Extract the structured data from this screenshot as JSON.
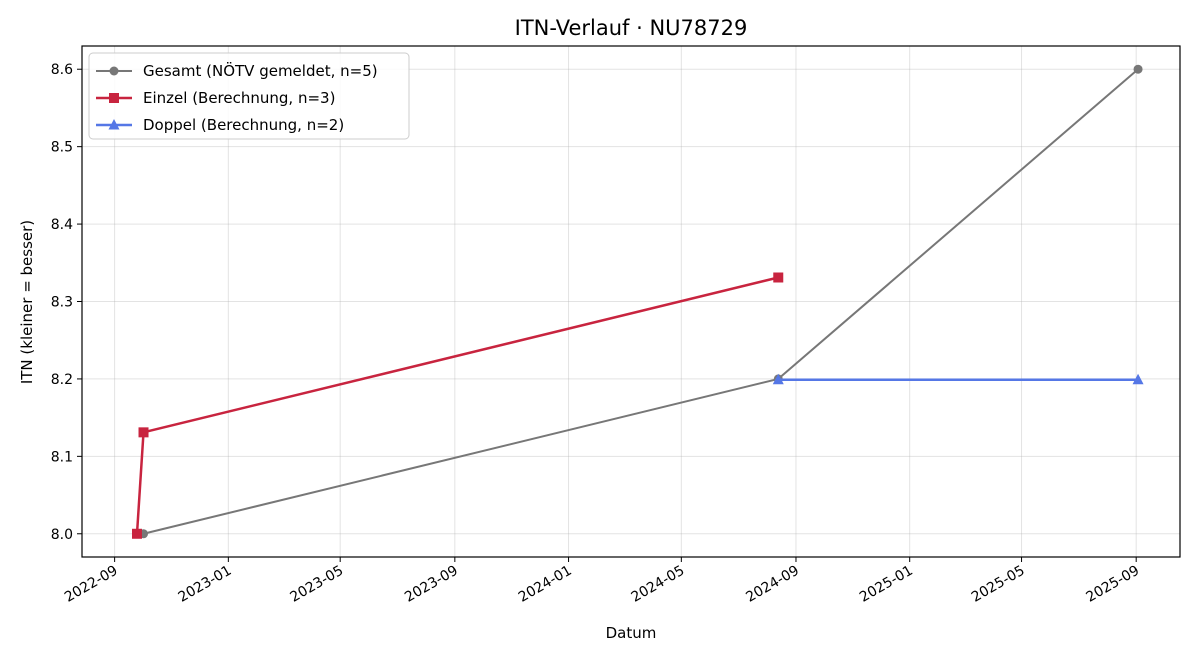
{
  "chart_data": {
    "type": "line",
    "title": "ITN-Verlauf · NU78729",
    "xlabel": "Datum",
    "ylabel": "ITN  (kleiner = besser)",
    "x_type": "date",
    "xlim": [
      "2022-07-28",
      "2025-10-18"
    ],
    "ylim": [
      7.97,
      8.63
    ],
    "x_ticks": [
      "2022-09-01",
      "2023-01-01",
      "2023-05-01",
      "2023-09-01",
      "2024-01-01",
      "2024-05-01",
      "2024-09-01",
      "2025-01-01",
      "2025-05-01",
      "2025-09-01"
    ],
    "x_tick_labels": [
      "2022-09",
      "2023-01",
      "2023-05",
      "2023-09",
      "2024-01",
      "2024-05",
      "2024-09",
      "2025-01",
      "2025-05",
      "2025-09"
    ],
    "y_ticks": [
      8.0,
      8.1,
      8.2,
      8.3,
      8.4,
      8.5,
      8.6
    ],
    "y_tick_labels": [
      "8.0",
      "8.1",
      "8.2",
      "8.3",
      "8.4",
      "8.5",
      "8.6"
    ],
    "grid": true,
    "legend_position": "top-left",
    "series": [
      {
        "name": "Gesamt (NÖTV gemeldet, n=5)",
        "color": "#777777",
        "marker": "circle",
        "x": [
          "2022-10-02",
          "2024-08-13",
          "2025-09-03"
        ],
        "y": [
          8.0,
          8.2,
          8.6
        ]
      },
      {
        "name": "Einzel (Berechnung, n=3)",
        "color": "#c8243f",
        "marker": "square",
        "x": [
          "2022-09-25",
          "2022-10-02",
          "2024-08-13"
        ],
        "y": [
          8.0,
          8.131,
          8.331
        ]
      },
      {
        "name": "Doppel (Berechnung, n=2)",
        "color": "#5577e6",
        "marker": "triangle",
        "x": [
          "2024-08-13",
          "2025-09-03"
        ],
        "y": [
          8.199,
          8.199
        ]
      }
    ]
  }
}
